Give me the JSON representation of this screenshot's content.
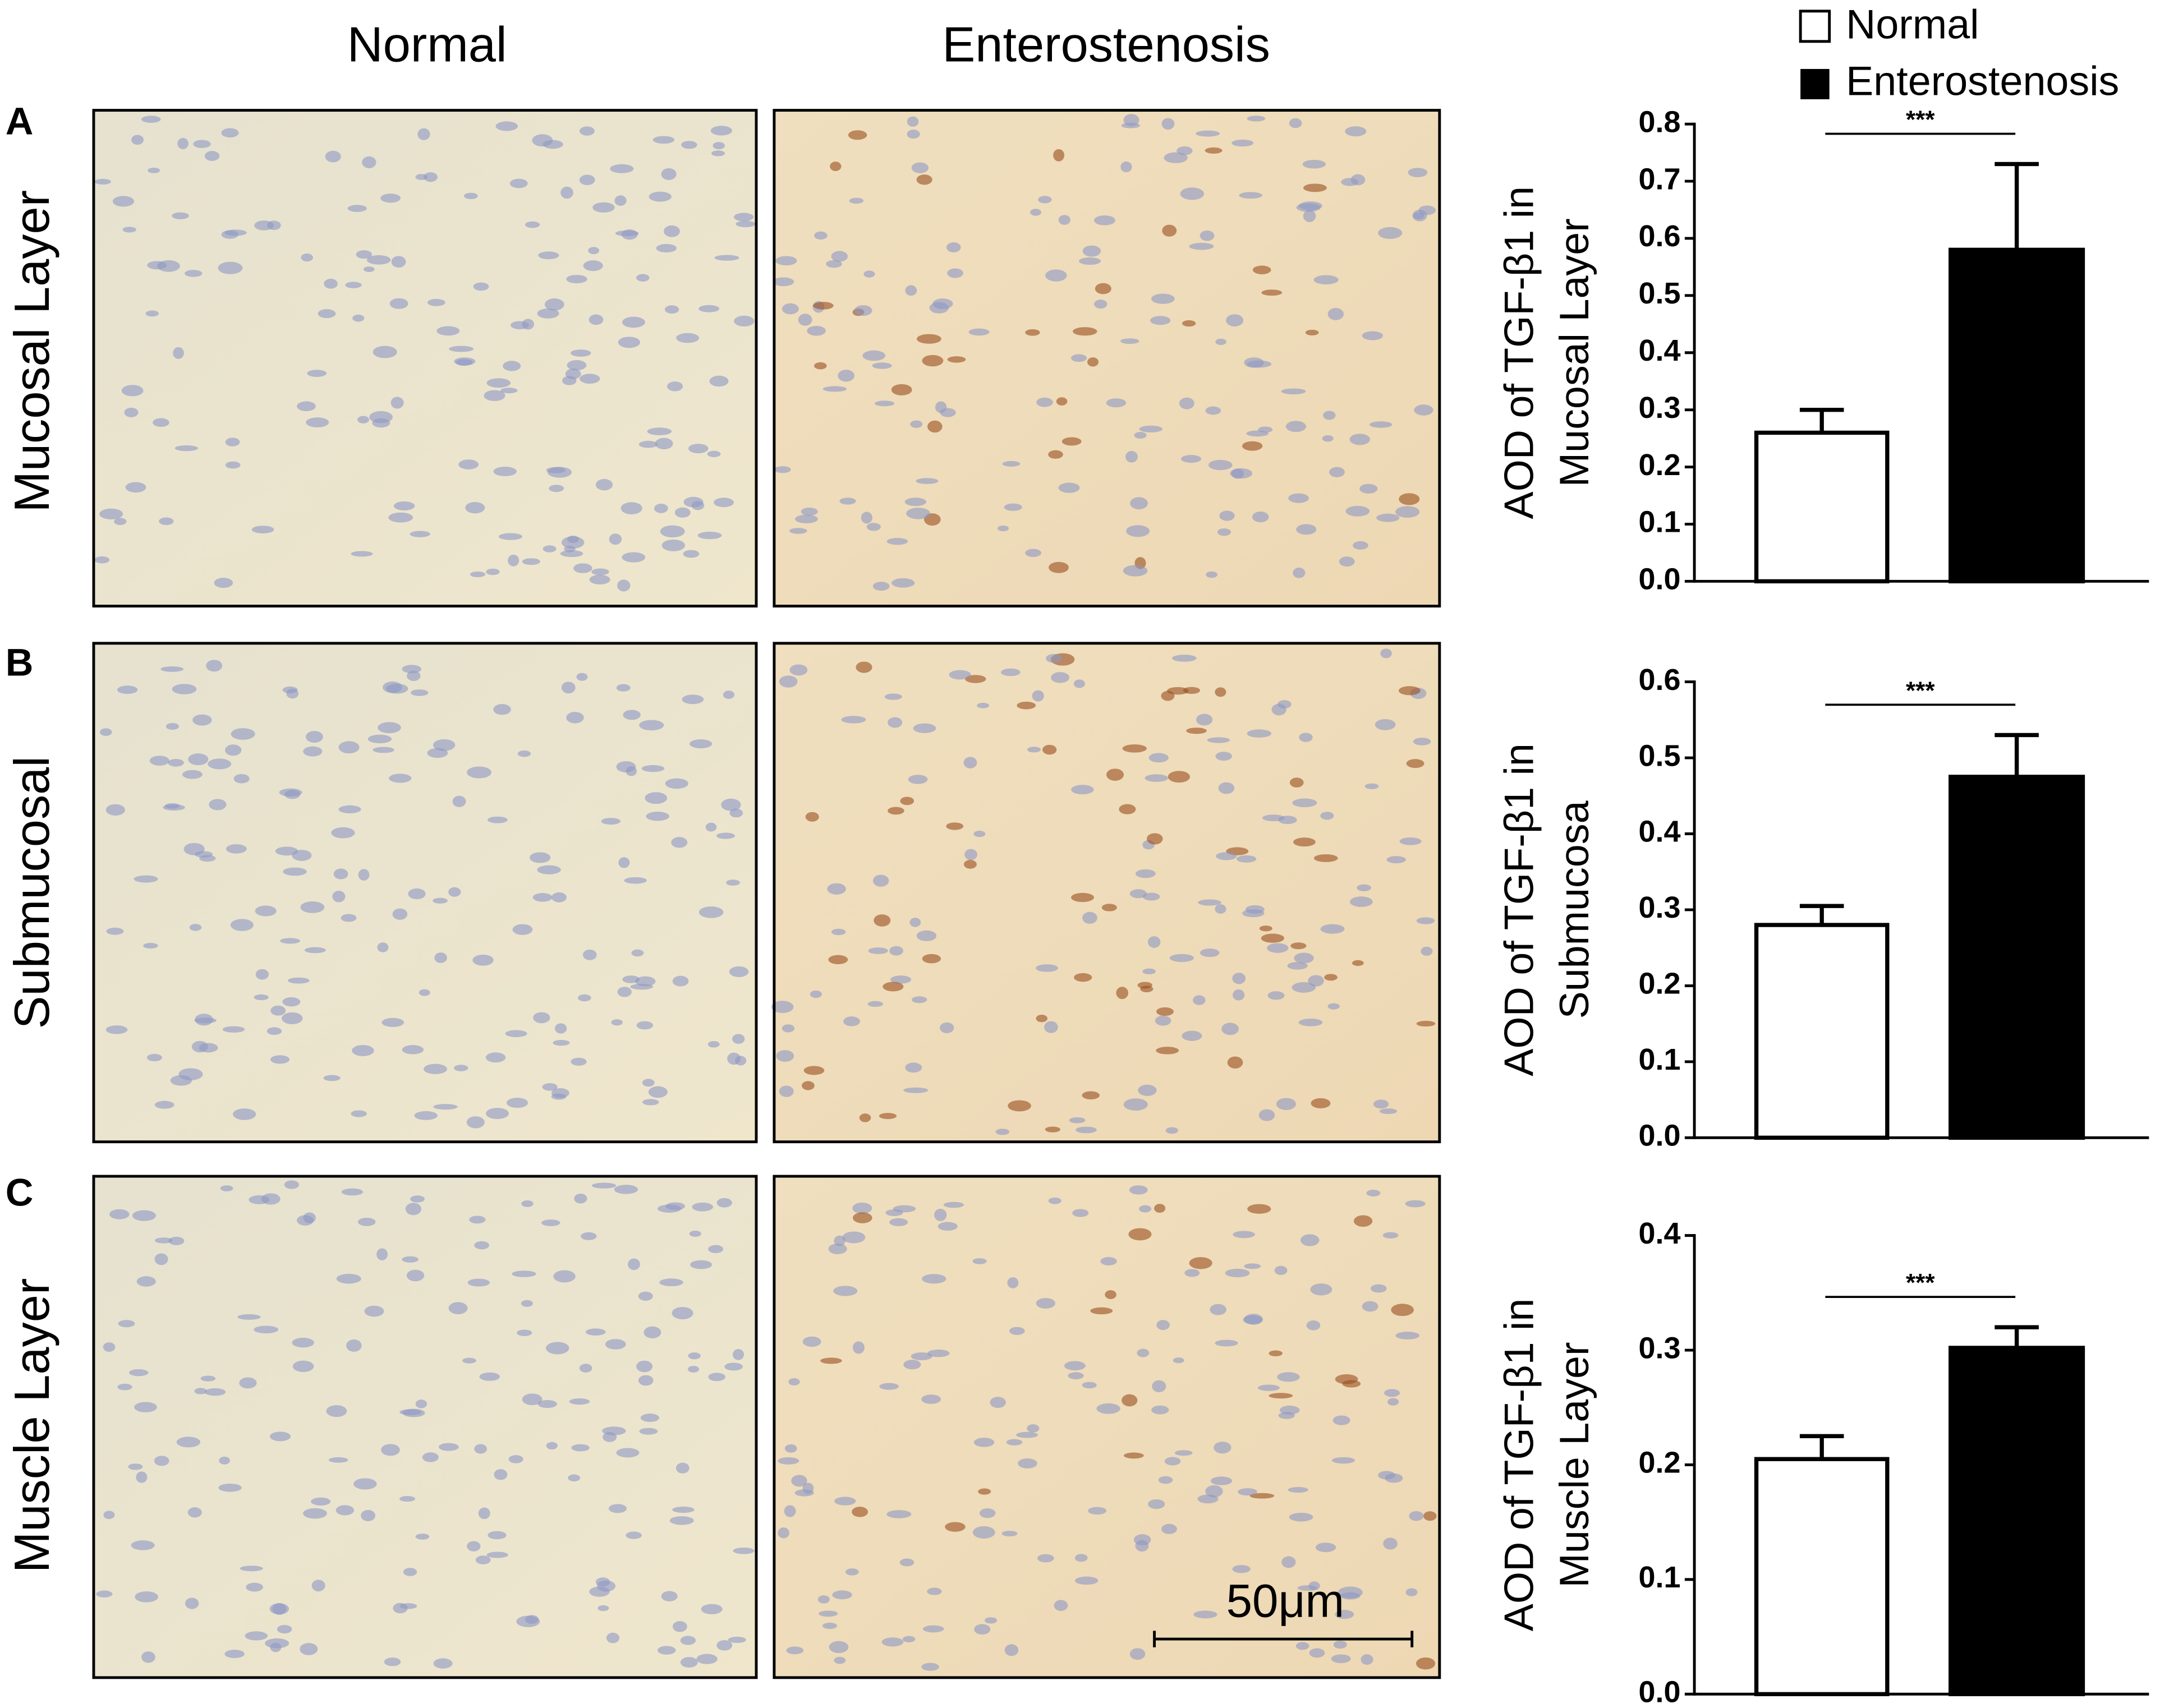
{
  "figure": {
    "column_headers": [
      "Normal",
      "Enterostenosis"
    ],
    "row_labels": [
      "Mucosal Layer",
      "Submucosal",
      "Muscle Layer"
    ],
    "panel_letters": [
      "A",
      "B",
      "C"
    ],
    "scale_bar": "50μm"
  },
  "chart_data": [
    {
      "type": "bar",
      "ylabel": [
        "AOD of TGF-β1 in",
        "Mucosal Layer"
      ],
      "annotation": "***",
      "series": [
        {
          "name": "Normal",
          "color": "#ffffff",
          "values": [
            0.26
          ],
          "errors": [
            0.04
          ]
        },
        {
          "name": "Enterostenosis",
          "color": "#000000",
          "values": [
            0.58
          ],
          "errors": [
            0.15
          ]
        }
      ],
      "ylim": [
        0,
        0.8
      ],
      "yticks": [
        {
          "value": 0,
          "label": "0.0"
        },
        0.1,
        0.2,
        0.3,
        0.4,
        0.5,
        0.6,
        0.7,
        0.8
      ]
    },
    {
      "type": "bar",
      "ylabel": [
        "AOD of TGF-β1 in",
        "Submucosa"
      ],
      "annotation": "***",
      "series": [
        {
          "name": "Normal",
          "color": "#ffffff",
          "values": [
            0.28
          ],
          "errors": [
            0.025
          ]
        },
        {
          "name": "Enterostenosis",
          "color": "#000000",
          "values": [
            0.475
          ],
          "errors": [
            0.055
          ]
        }
      ],
      "ylim": [
        0,
        0.6
      ],
      "yticks": [
        {
          "value": 0,
          "label": "0.0"
        },
        0.1,
        0.2,
        0.3,
        0.4,
        0.5,
        0.6
      ]
    },
    {
      "type": "bar",
      "ylabel": [
        "AOD of TGF-β1 in",
        "Muscle Layer"
      ],
      "annotation": "***",
      "series": [
        {
          "name": "Normal",
          "color": "#ffffff",
          "values": [
            0.205
          ],
          "errors": [
            0.02
          ]
        },
        {
          "name": "Enterostenosis",
          "color": "#000000",
          "values": [
            0.302
          ],
          "errors": [
            0.018
          ]
        }
      ],
      "ylim": [
        0,
        0.4
      ],
      "yticks": [
        {
          "value": 0,
          "label": "0.0"
        },
        0.1,
        0.2,
        0.3,
        0.4
      ]
    }
  ]
}
